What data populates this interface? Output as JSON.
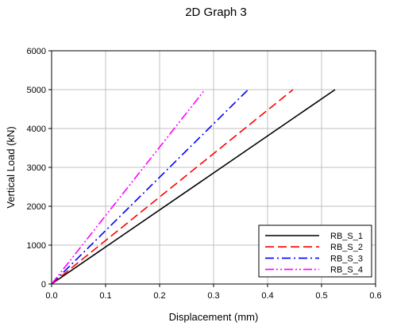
{
  "chart_data": {
    "type": "line",
    "title": "2D Graph 3",
    "xlabel": "Displacement (mm)",
    "ylabel": "Vertical Load (kN)",
    "xlim": [
      0.0,
      0.6
    ],
    "ylim": [
      0,
      6000
    ],
    "xticks": [
      "0.0",
      "0.1",
      "0.2",
      "0.3",
      "0.4",
      "0.5",
      "0.6"
    ],
    "yticks": [
      "0",
      "1000",
      "2000",
      "3000",
      "4000",
      "5000",
      "6000"
    ],
    "grid": true,
    "legend_position": "bottom-right",
    "series": [
      {
        "name": "RB_S_1",
        "color": "#000000",
        "dash": "solid",
        "x": [
          0.0,
          0.525
        ],
        "y": [
          0,
          5000
        ]
      },
      {
        "name": "RB_S_2",
        "color": "#ff0000",
        "dash": "dashed",
        "x": [
          0.0,
          0.447
        ],
        "y": [
          0,
          5000
        ]
      },
      {
        "name": "RB_S_3",
        "color": "#0000ff",
        "dash": "dash-dot",
        "x": [
          0.0,
          0.364
        ],
        "y": [
          0,
          5000
        ]
      },
      {
        "name": "RB_S_4",
        "color": "#ff00ff",
        "dash": "dash-dot-dot",
        "x": [
          0.0,
          0.284
        ],
        "y": [
          0,
          5000
        ]
      }
    ]
  }
}
